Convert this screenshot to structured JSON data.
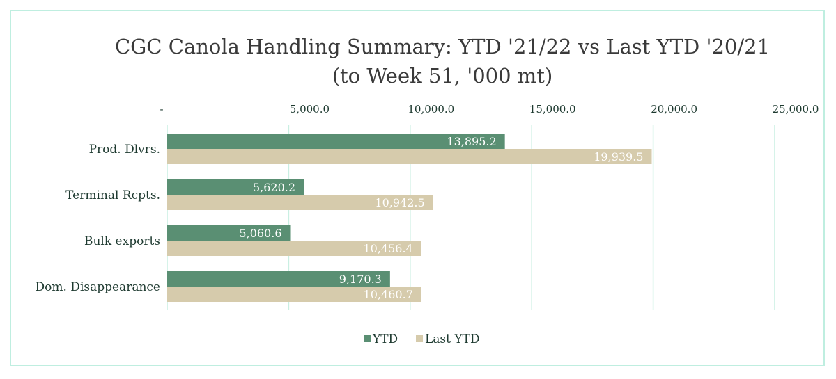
{
  "chart_data": {
    "type": "bar",
    "orientation": "horizontal",
    "title_line1": "CGC Canola Handling Summary: YTD '21/22 vs Last YTD '20/21",
    "title_line2": "(to Week 51, '000 mt)",
    "categories": [
      "Prod. Dlvrs.",
      "Terminal Rcpts.",
      "Bulk exports",
      "Dom. Disappearance"
    ],
    "series": [
      {
        "name": "YTD",
        "color": "#5a8f73",
        "values": [
          13895.2,
          5620.2,
          5060.6,
          9170.3
        ],
        "labels": [
          "13,895.2",
          "5,620.2",
          "5,060.6",
          "9,170.3"
        ]
      },
      {
        "name": "Last YTD",
        "color": "#d6cbac",
        "values": [
          19939.5,
          10942.5,
          10456.4,
          10460.7
        ],
        "labels": [
          "19,939.5",
          "10,942.5",
          "10,456.4",
          "10,460.7"
        ]
      }
    ],
    "xlim": [
      0,
      25000
    ],
    "tick_values": [
      0,
      5000,
      10000,
      15000,
      20000,
      25000
    ],
    "tick_labels": [
      "-",
      "5,000.0",
      "10,000.0",
      "15,000.0",
      "20,000.0",
      "25,000.0"
    ],
    "xaxis_position": "top",
    "grid": true,
    "legend_position": "bottom-center",
    "colors": {
      "gridline": "#c9efe2",
      "border": "#bfeee0"
    }
  }
}
